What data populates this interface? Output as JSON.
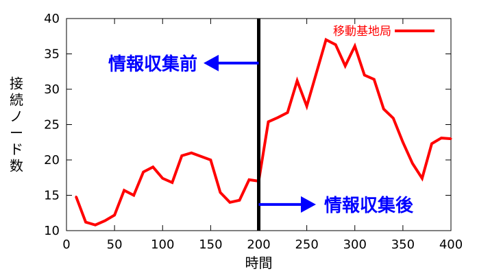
{
  "chart_data": {
    "type": "line",
    "xlabel": "時間",
    "ylabel": "接続ノード数",
    "xlim": [
      0,
      400
    ],
    "ylim": [
      10,
      40
    ],
    "x_ticks": [
      0,
      50,
      100,
      150,
      200,
      250,
      300,
      350,
      400
    ],
    "y_ticks": [
      10,
      15,
      20,
      25,
      30,
      35,
      40
    ],
    "grid": false,
    "legend_position": "top-right",
    "series": [
      {
        "name": "移動基地局",
        "color": "#ff0000",
        "x": [
          10,
          20,
          30,
          40,
          50,
          60,
          70,
          80,
          90,
          100,
          110,
          120,
          130,
          140,
          150,
          160,
          170,
          180,
          190,
          200,
          210,
          220,
          230,
          240,
          250,
          260,
          270,
          280,
          290,
          300,
          310,
          320,
          330,
          340,
          350,
          360,
          370,
          380,
          390,
          400
        ],
        "y": [
          14.8,
          11.2,
          10.8,
          11.4,
          12.2,
          15.7,
          15.0,
          18.3,
          19.0,
          17.4,
          16.8,
          20.6,
          21.0,
          20.5,
          20.0,
          15.4,
          14.0,
          14.3,
          17.2,
          17.0,
          25.4,
          26.0,
          26.7,
          31.2,
          27.6,
          32.3,
          37.0,
          36.3,
          33.3,
          36.1,
          32.0,
          31.4,
          27.2,
          25.9,
          22.5,
          19.5,
          17.4,
          22.3,
          23.1,
          23.0
        ]
      }
    ],
    "divider": {
      "x": 200,
      "color": "#000000"
    },
    "annotations": [
      {
        "id": "before",
        "text": "情報収集前",
        "color": "#0000ff",
        "y": 33.7,
        "arrow_direction": "left"
      },
      {
        "id": "after",
        "text": "情報収集後",
        "color": "#0000ff",
        "y": 13.7,
        "arrow_direction": "right"
      }
    ]
  }
}
